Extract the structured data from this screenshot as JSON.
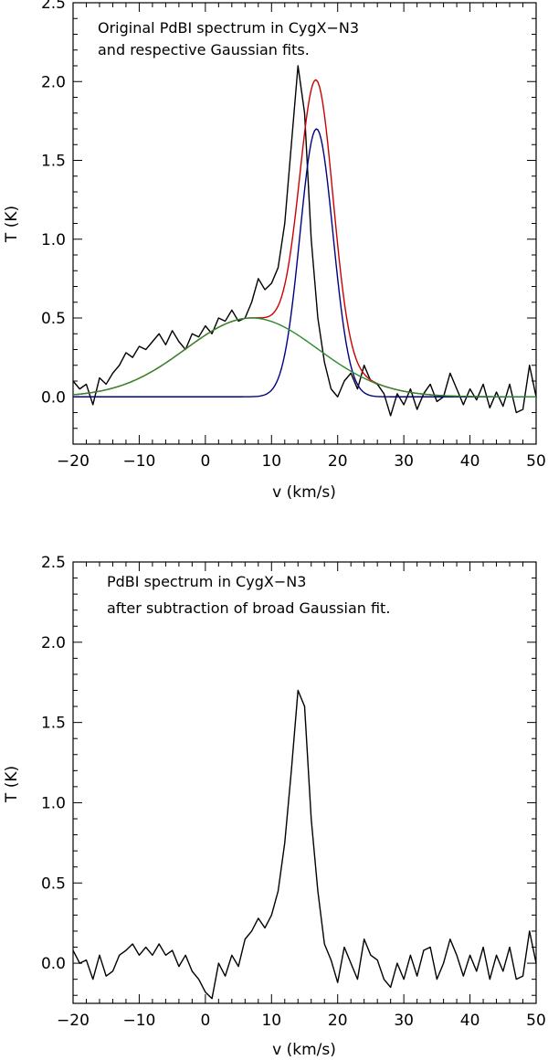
{
  "chart_data": [
    {
      "type": "line",
      "xlabel": "v (km/s)",
      "ylabel": "T (K)",
      "xlim": [
        -20,
        50
      ],
      "ylim": [
        -0.3,
        2.5
      ],
      "xticks": [
        -20,
        -10,
        0,
        10,
        20,
        30,
        40,
        50
      ],
      "yticks": [
        0.0,
        0.5,
        1.0,
        1.5,
        2.0,
        2.5
      ],
      "xtick_labels": [
        "−20",
        "−10",
        "0",
        "10",
        "20",
        "30",
        "40",
        "50"
      ],
      "ytick_labels": [
        "0.0",
        "0.5",
        "1.0",
        "1.5",
        "2.0",
        "2.5"
      ],
      "annotation": [
        "Original PdBI spectrum in CygX−N3",
        "and respective Gaussian fits."
      ],
      "grid": false,
      "series": [
        {
          "color": "#000000",
          "x": [
            -20,
            -19,
            -18,
            -17,
            -16,
            -15,
            -14,
            -13,
            -12,
            -11,
            -10,
            -9,
            -8,
            -7,
            -6,
            -5,
            -4,
            -3,
            -2,
            -1,
            0,
            1,
            2,
            3,
            4,
            5,
            6,
            7,
            8,
            9,
            10,
            11,
            12,
            13,
            14,
            15,
            16,
            17,
            18,
            19,
            20,
            21,
            22,
            23,
            24,
            25,
            26,
            27,
            28,
            29,
            30,
            31,
            32,
            33,
            34,
            35,
            36,
            37,
            38,
            39,
            40,
            41,
            42,
            43,
            44,
            45,
            46,
            47,
            48,
            49,
            50
          ],
          "values": [
            0.1,
            0.05,
            0.08,
            -0.05,
            0.12,
            0.08,
            0.15,
            0.2,
            0.28,
            0.25,
            0.32,
            0.3,
            0.35,
            0.4,
            0.33,
            0.42,
            0.35,
            0.3,
            0.4,
            0.38,
            0.45,
            0.4,
            0.5,
            0.48,
            0.55,
            0.48,
            0.5,
            0.6,
            0.75,
            0.68,
            0.72,
            0.82,
            1.1,
            1.6,
            2.1,
            1.8,
            1.0,
            0.5,
            0.22,
            0.05,
            0.0,
            0.1,
            0.15,
            0.05,
            0.2,
            0.1,
            0.08,
            0.02,
            -0.12,
            0.02,
            -0.05,
            0.05,
            -0.08,
            0.02,
            0.08,
            -0.03,
            0.0,
            0.15,
            0.05,
            -0.05,
            0.05,
            -0.02,
            0.08,
            -0.07,
            0.03,
            -0.06,
            0.08,
            -0.1,
            -0.08,
            0.2,
            0.0
          ]
        },
        {
          "color": "#cc0000",
          "function": "gauss_sum",
          "components": [
            [
              0.5,
              7.0,
              10.0
            ],
            [
              1.7,
              16.8,
              2.5
            ]
          ]
        },
        {
          "color": "#000080",
          "function": "gauss",
          "params": [
            1.7,
            16.8,
            2.5
          ]
        },
        {
          "color": "#2e8b2e",
          "function": "gauss",
          "params": [
            0.5,
            7.0,
            10.0
          ]
        }
      ]
    },
    {
      "type": "line",
      "xlabel": "v (km/s)",
      "ylabel": "T (K)",
      "xlim": [
        -20,
        50
      ],
      "ylim": [
        -0.25,
        2.5
      ],
      "xticks": [
        -20,
        -10,
        0,
        10,
        20,
        30,
        40,
        50
      ],
      "yticks": [
        0.0,
        0.5,
        1.0,
        1.5,
        2.0,
        2.5
      ],
      "xtick_labels": [
        "−20",
        "−10",
        "0",
        "10",
        "20",
        "30",
        "40",
        "50"
      ],
      "ytick_labels": [
        "0.0",
        "0.5",
        "1.0",
        "1.5",
        "2.0",
        "2.5"
      ],
      "annotation": [
        "PdBI spectrum in CygX−N3",
        "after subtraction of broad Gaussian fit."
      ],
      "grid": false,
      "series": [
        {
          "color": "#000000",
          "x": [
            -20,
            -19,
            -18,
            -17,
            -16,
            -15,
            -14,
            -13,
            -12,
            -11,
            -10,
            -9,
            -8,
            -7,
            -6,
            -5,
            -4,
            -3,
            -2,
            -1,
            0,
            1,
            2,
            3,
            4,
            5,
            6,
            7,
            8,
            9,
            10,
            11,
            12,
            13,
            14,
            15,
            16,
            17,
            18,
            19,
            20,
            21,
            22,
            23,
            24,
            25,
            26,
            27,
            28,
            29,
            30,
            31,
            32,
            33,
            34,
            35,
            36,
            37,
            38,
            39,
            40,
            41,
            42,
            43,
            44,
            45,
            46,
            47,
            48,
            49,
            50
          ],
          "values": [
            0.08,
            0.0,
            0.02,
            -0.1,
            0.05,
            -0.08,
            -0.05,
            0.05,
            0.08,
            0.12,
            0.05,
            0.1,
            0.05,
            0.12,
            0.05,
            0.08,
            -0.02,
            0.05,
            -0.05,
            -0.1,
            -0.18,
            -0.22,
            0.0,
            -0.08,
            0.05,
            -0.02,
            0.15,
            0.2,
            0.28,
            0.22,
            0.3,
            0.45,
            0.75,
            1.2,
            1.7,
            1.6,
            0.9,
            0.45,
            0.12,
            0.02,
            -0.12,
            0.1,
            0.0,
            -0.1,
            0.15,
            0.05,
            0.02,
            -0.1,
            -0.15,
            0.0,
            -0.1,
            0.05,
            -0.08,
            0.08,
            0.1,
            -0.1,
            0.0,
            0.15,
            0.05,
            -0.08,
            0.05,
            -0.05,
            0.1,
            -0.1,
            0.05,
            -0.05,
            0.1,
            -0.1,
            -0.08,
            0.2,
            0.0
          ]
        }
      ]
    }
  ]
}
